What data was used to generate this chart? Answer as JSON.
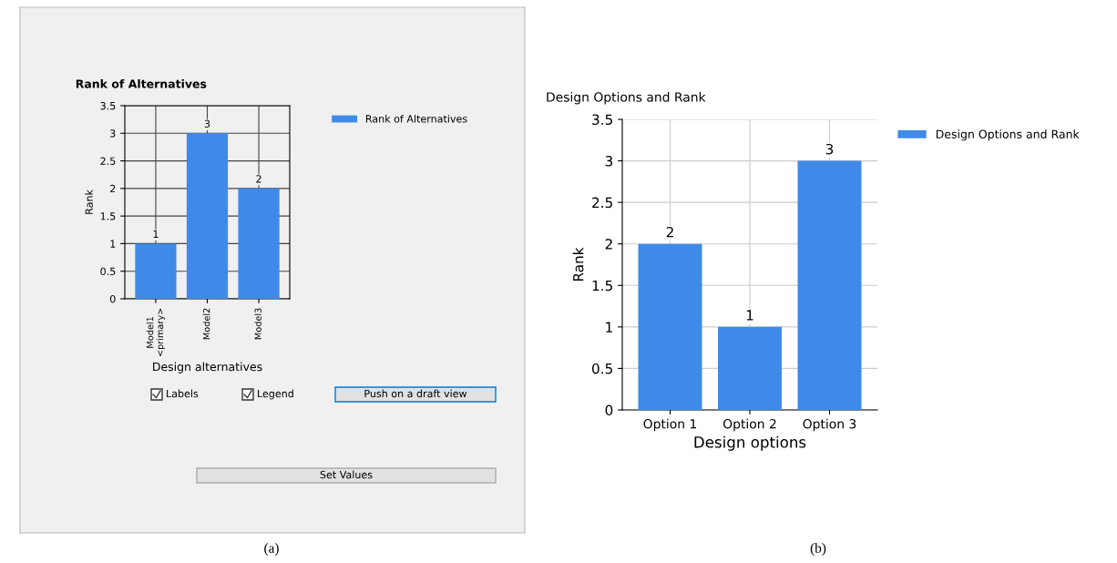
{
  "chart_data": [
    {
      "type": "bar",
      "title": "Rank of Alternatives",
      "xlabel": "Design alternatives",
      "ylabel": "Rank",
      "categories": [
        "Model1\n<primary>",
        "Model2",
        "Model3"
      ],
      "series": [
        {
          "name": "Rank of Alternatives",
          "color": "#3f8ae8",
          "values": [
            1,
            3,
            2
          ]
        }
      ],
      "ylim": [
        0,
        3.5
      ],
      "yticks": [
        0,
        0.5,
        1,
        1.5,
        2,
        2.5,
        3,
        3.5
      ],
      "grid": true,
      "legend": "top right",
      "data_labels": true,
      "annotations": [
        "Labels",
        "Legend",
        "Push on a draft view",
        "Set Values",
        "(a)"
      ]
    },
    {
      "type": "bar",
      "title": "Design Options and Rank",
      "xlabel": "Design options",
      "ylabel": "Rank",
      "categories": [
        "Option 1",
        "Option 2",
        "Option 3"
      ],
      "series": [
        {
          "name": "Design Options and Rank",
          "color": "#3f8ae8",
          "values": [
            2,
            1,
            3
          ]
        }
      ],
      "ylim": [
        0,
        3.5
      ],
      "yticks": [
        0,
        0.5,
        1,
        1.5,
        2,
        2.5,
        3,
        3.5
      ],
      "grid": true,
      "legend": "top right",
      "data_labels": true,
      "annotations": [
        "(b)"
      ]
    }
  ]
}
